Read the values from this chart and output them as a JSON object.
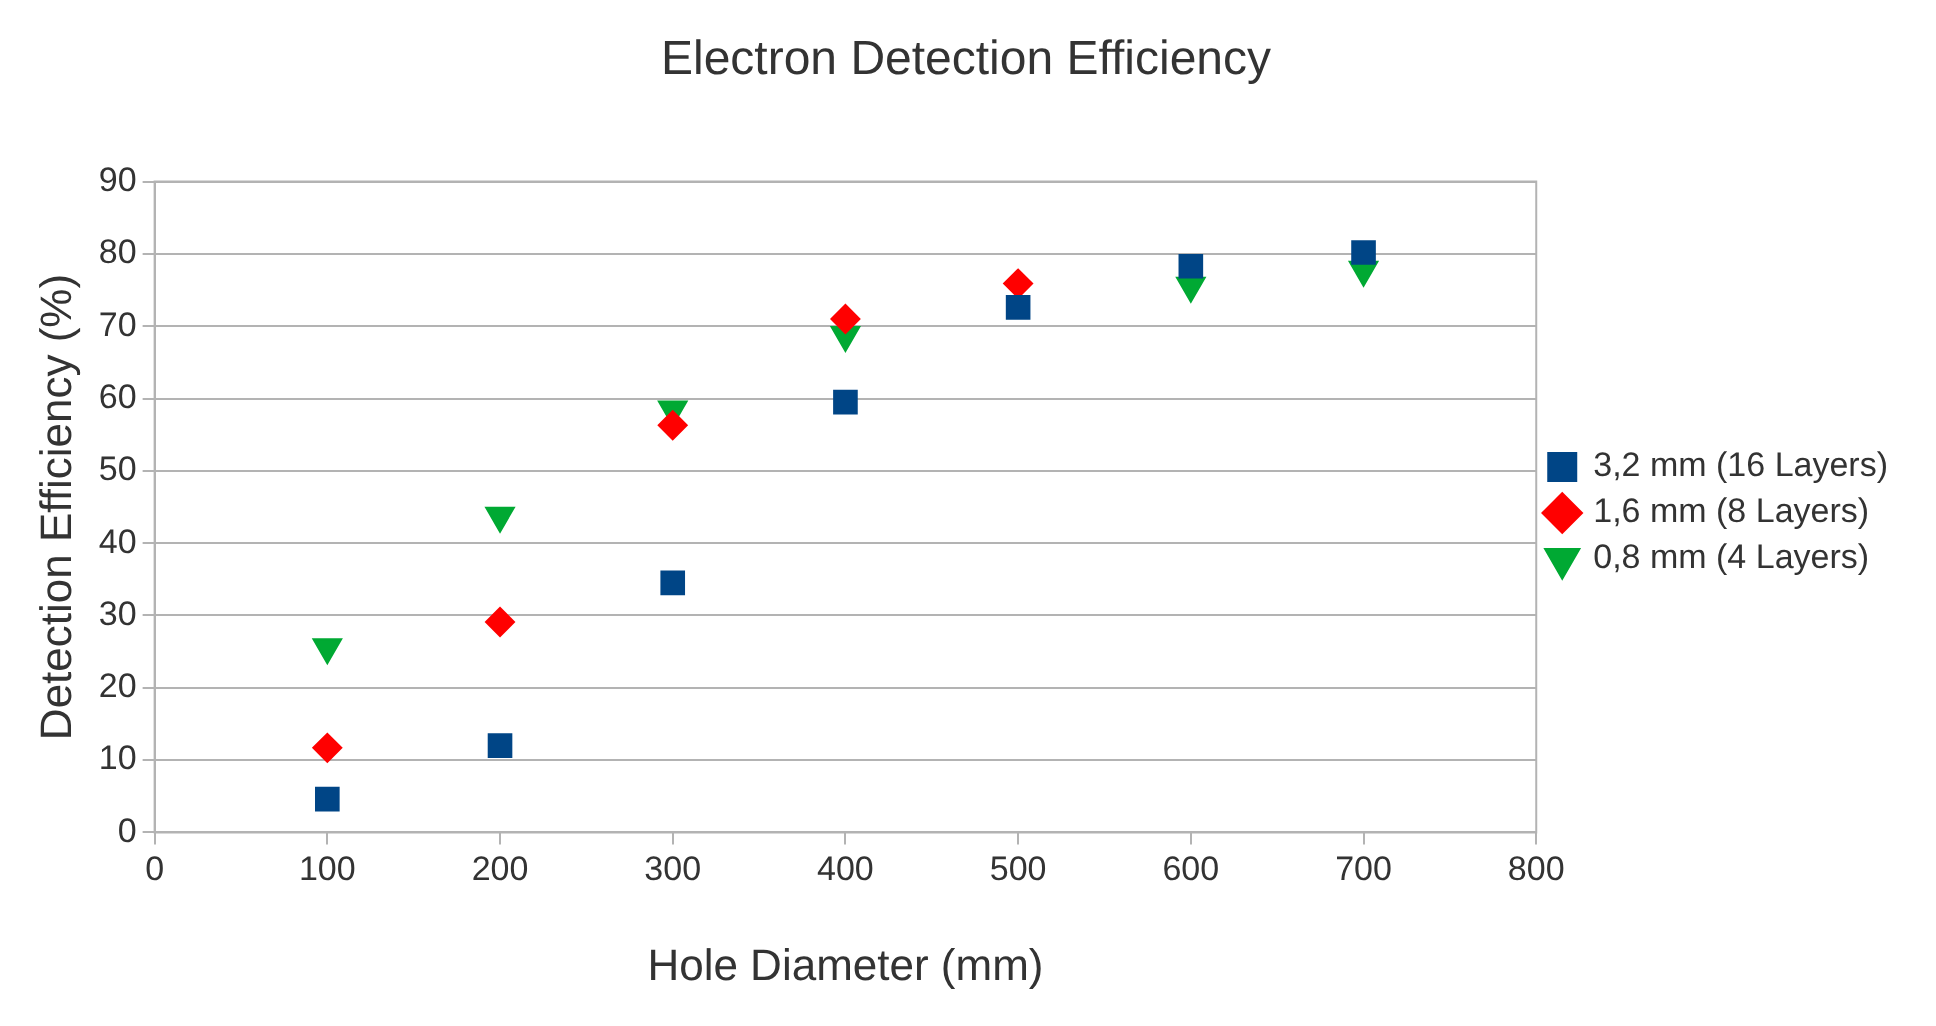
{
  "chart_data": {
    "type": "scatter",
    "title": "Electron Detection Efficiency",
    "xlabel": "Hole Diameter (mm)",
    "ylabel": "Detection Efficiency (%)",
    "x": [
      100,
      200,
      300,
      400,
      500,
      600,
      700
    ],
    "series": [
      {
        "name": "3,2 mm (16 Layers)",
        "color": "#004586",
        "marker": "square",
        "values": [
          4.6,
          12,
          34.5,
          59.5,
          72.6,
          78.3,
          80.2
        ]
      },
      {
        "name": "1,6 mm (8 Layers)",
        "color": "#ff0000",
        "marker": "diamond",
        "values": [
          11.7,
          29.1,
          56.3,
          71,
          75.9,
          null,
          null
        ]
      },
      {
        "name": "0,8 mm (4 Layers)",
        "color": "#00a933",
        "marker": "triangle",
        "values": [
          25.6,
          43.8,
          58.5,
          68.8,
          null,
          75.6,
          77.8
        ]
      }
    ],
    "xlim": [
      0,
      800
    ],
    "xticks": [
      0,
      100,
      200,
      300,
      400,
      500,
      600,
      700,
      800
    ],
    "ylim": [
      0,
      90
    ],
    "yticks": [
      0,
      10,
      20,
      30,
      40,
      50,
      60,
      70,
      80,
      90
    ],
    "grid": "y",
    "legend": "right"
  }
}
